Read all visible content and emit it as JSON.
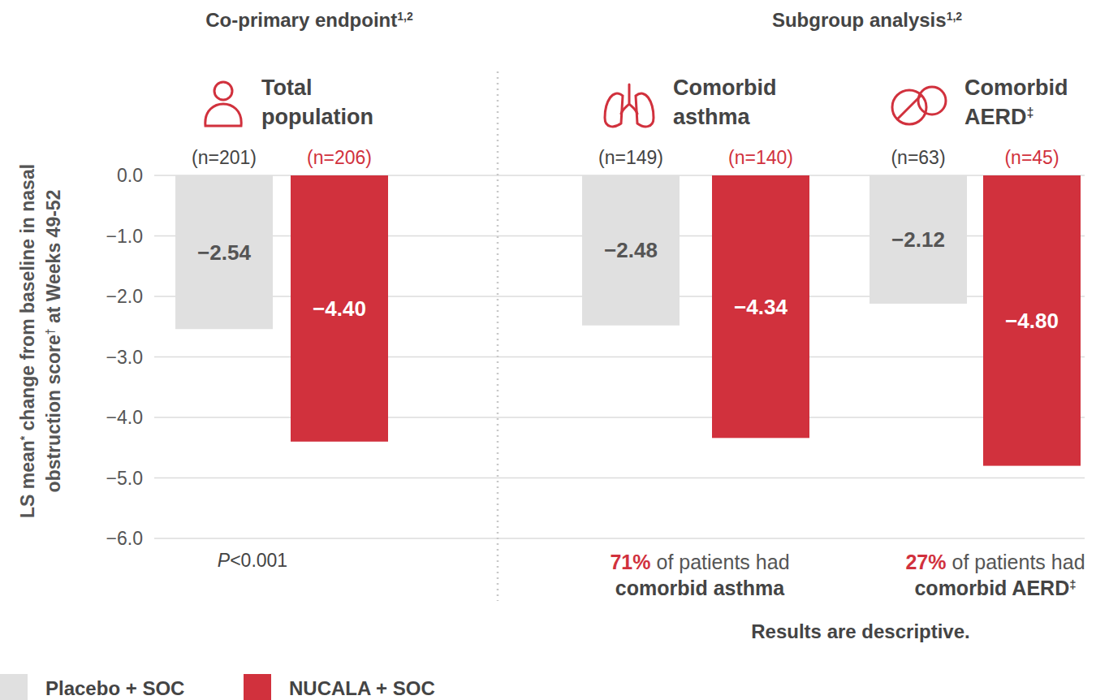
{
  "chart_data": {
    "type": "bar",
    "section_titles": [
      {
        "text": "Co-primary endpoint",
        "note": "1,2"
      },
      {
        "text": "Subgroup analysis",
        "note": "1,2"
      }
    ],
    "ylabel": [
      "LS mean* change from baseline in nasal",
      "obstruction score† at Weeks 49-52"
    ],
    "categories": [
      "Total population",
      "Comorbid asthma",
      "Comorbid AERD‡"
    ],
    "series": [
      {
        "name": "Placebo + SOC",
        "color": "#e0e0e0",
        "values": [
          -2.54,
          -2.48,
          -2.12
        ],
        "value_labels": [
          "−2.54",
          "−2.48",
          "−2.12"
        ],
        "n_labels": [
          "(n=201)",
          "(n=149)",
          "(n=63)"
        ]
      },
      {
        "name": "NUCALA + SOC",
        "color": "#d1313d",
        "values": [
          -4.4,
          -4.34,
          -4.8
        ],
        "value_labels": [
          "−4.40",
          "−4.34",
          "−4.80"
        ],
        "n_labels": [
          "(n=206)",
          "(n=140)",
          "(n=45)"
        ]
      }
    ],
    "ylim": [
      -6,
      0
    ],
    "yticks": [
      {
        "value": 0,
        "label": "0.0"
      },
      {
        "value": -1,
        "label": "−1.0"
      },
      {
        "value": -2,
        "label": "−2.0"
      },
      {
        "value": -3,
        "label": "−3.0"
      },
      {
        "value": -4,
        "label": "−4.0"
      },
      {
        "value": -5,
        "label": "−5.0"
      },
      {
        "value": -6,
        "label": "−6.0"
      }
    ],
    "grid": true,
    "data_labels": true,
    "legend": "bottom-left",
    "annotations": {
      "p_value": "P<0.001",
      "notes": [
        null,
        {
          "highlight": "71%",
          "text": "of patients had",
          "emphasis": "comorbid asthma"
        },
        {
          "highlight": "27%",
          "text": "of patients had",
          "emphasis": "comorbid AERD‡"
        }
      ],
      "footnote": "Results are descriptive."
    }
  }
}
